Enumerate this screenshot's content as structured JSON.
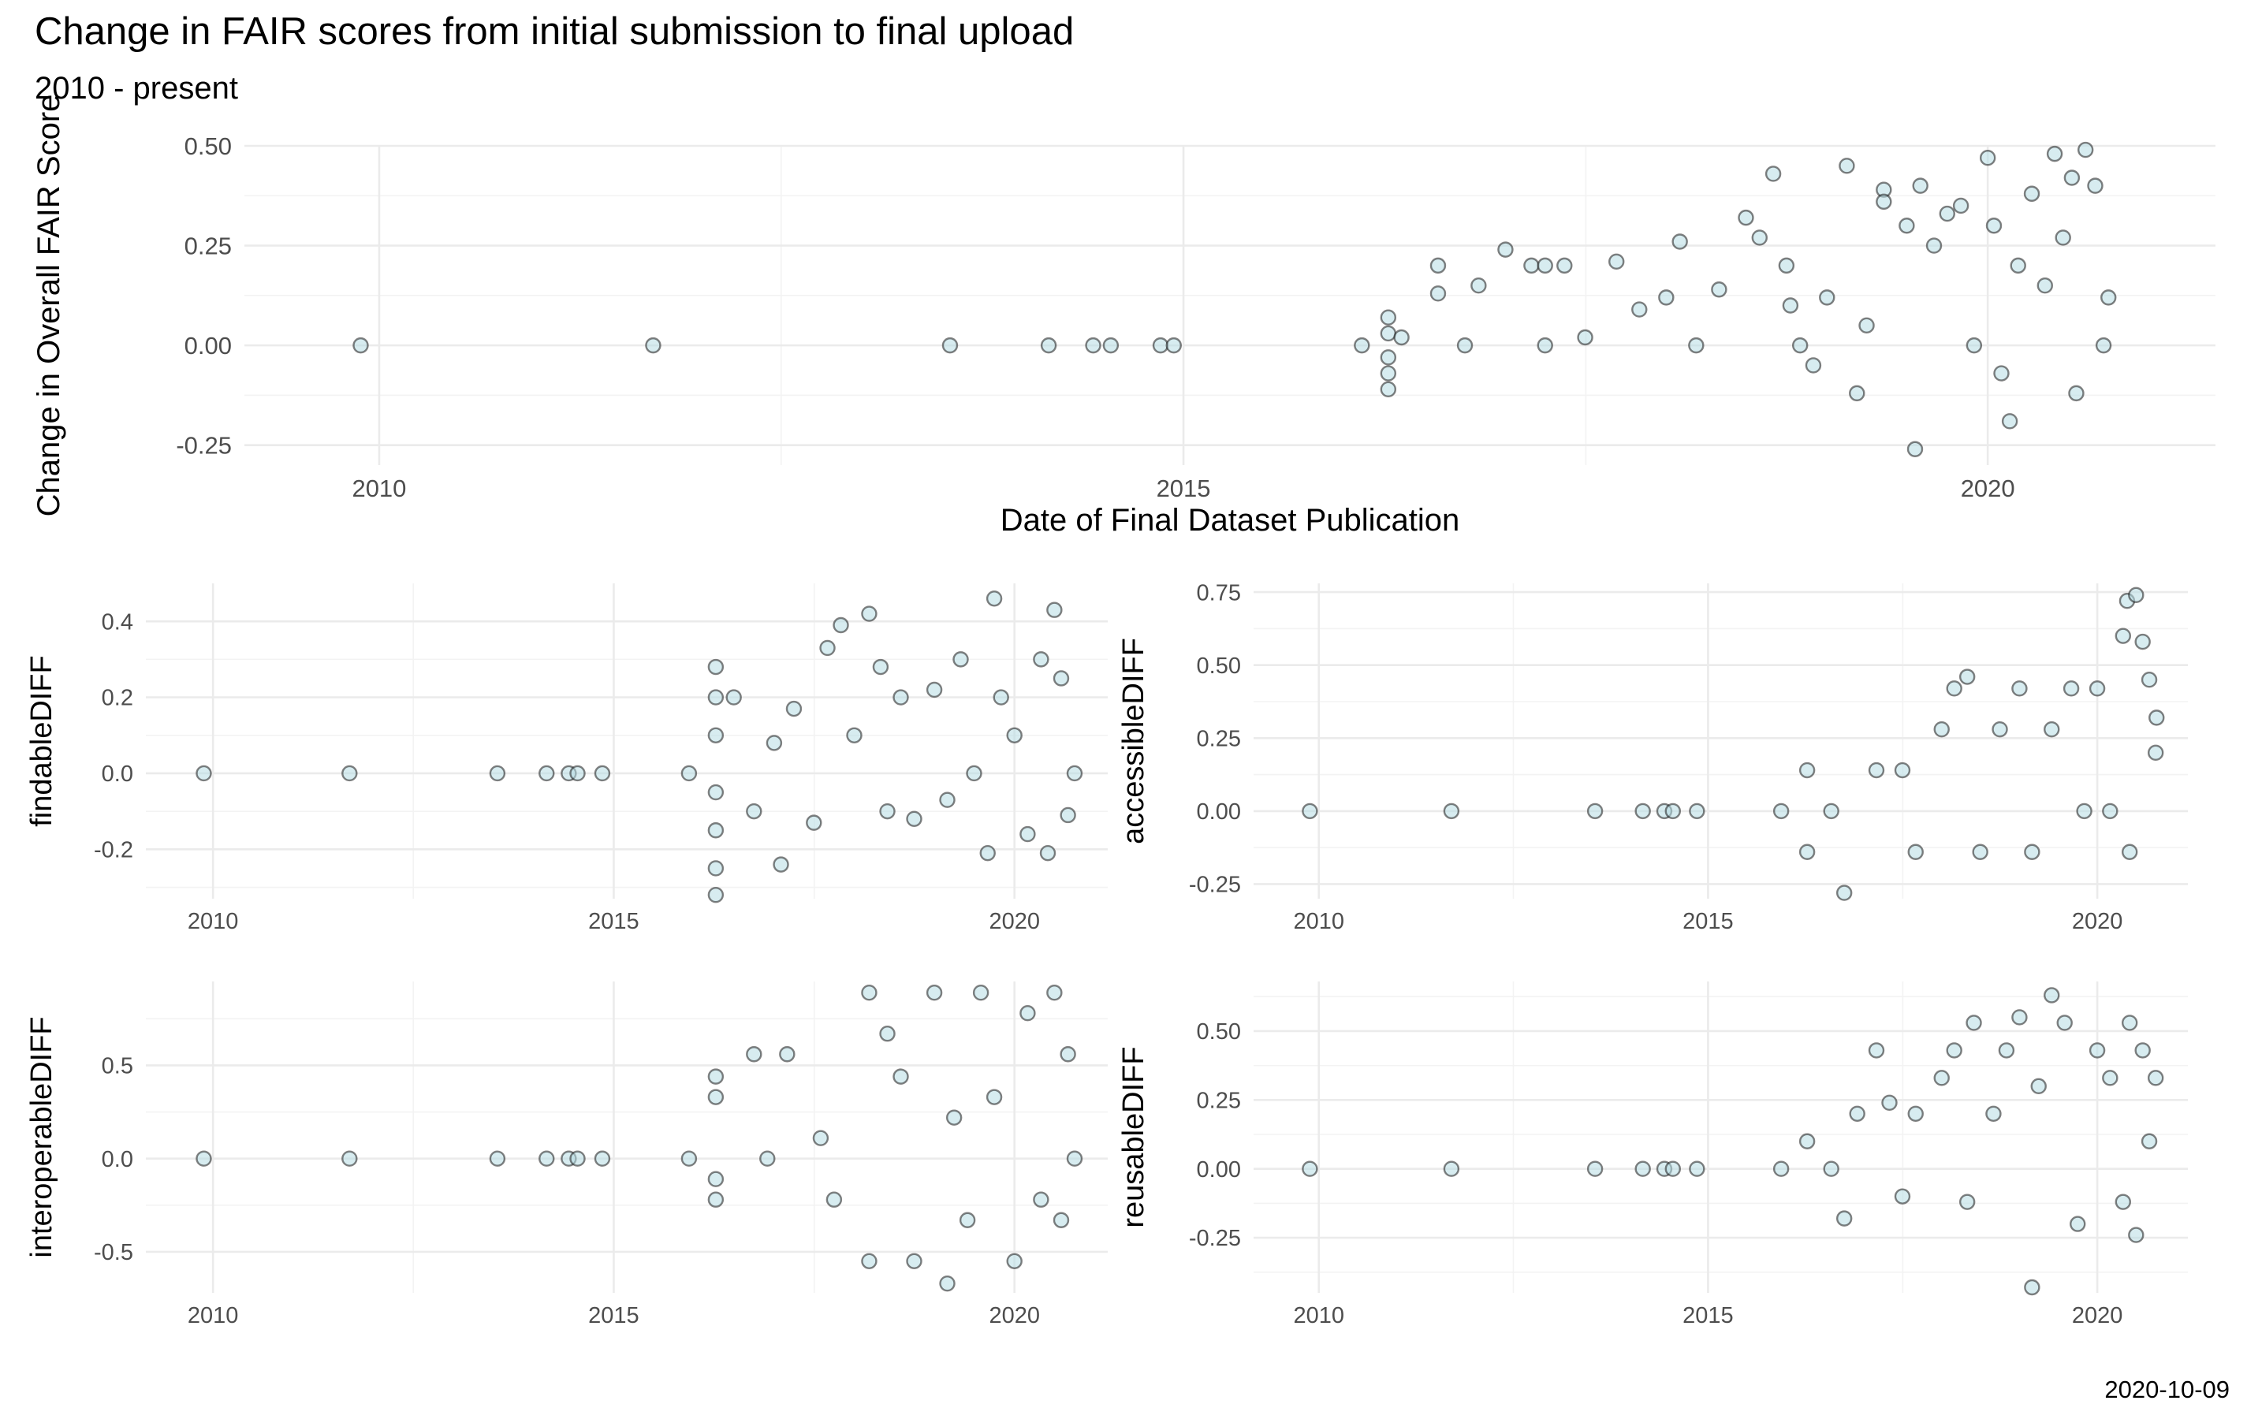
{
  "title": "Change in FAIR scores from initial submission to final upload",
  "subtitle": "2010 - present",
  "caption": "2020-10-09",
  "colors": {
    "point_fill": "#b7dde3",
    "point_stroke": "#1a1a1a",
    "grid": "#ebebeb"
  },
  "chart_data": [
    {
      "type": "scatter",
      "xlabel": "Date of Final Dataset Publication",
      "ylabel": "Change in Overall FAIR Score",
      "xlim": [
        "2009-03-01",
        "2021-06-01"
      ],
      "ylim": [
        -0.3,
        0.5
      ],
      "xticks": [
        "2010",
        "2015",
        "2020"
      ],
      "yticks": [
        "-0.25",
        "0.00",
        "0.25",
        "0.50"
      ],
      "grid": true,
      "points": [
        [
          "2009-11-20",
          0.0
        ],
        [
          "2011-09-15",
          0.0
        ],
        [
          "2013-07-20",
          0.0
        ],
        [
          "2014-03-01",
          0.0
        ],
        [
          "2014-06-10",
          0.0
        ],
        [
          "2014-07-20",
          0.0
        ],
        [
          "2014-11-10",
          0.0
        ],
        [
          "2014-12-10",
          0.0
        ],
        [
          "2016-02-10",
          0.0
        ],
        [
          "2016-04-10",
          0.07
        ],
        [
          "2016-04-10",
          0.03
        ],
        [
          "2016-04-10",
          -0.03
        ],
        [
          "2016-04-10",
          -0.07
        ],
        [
          "2016-04-10",
          -0.11
        ],
        [
          "2016-05-10",
          0.02
        ],
        [
          "2016-08-01",
          0.2
        ],
        [
          "2016-08-01",
          0.13
        ],
        [
          "2016-10-01",
          0.0
        ],
        [
          "2016-11-01",
          0.15
        ],
        [
          "2017-01-01",
          0.24
        ],
        [
          "2017-03-01",
          0.2
        ],
        [
          "2017-04-01",
          0.2
        ],
        [
          "2017-05-15",
          0.2
        ],
        [
          "2017-04-01",
          0.0
        ],
        [
          "2017-07-01",
          0.02
        ],
        [
          "2017-09-10",
          0.21
        ],
        [
          "2017-11-01",
          0.09
        ],
        [
          "2018-01-01",
          0.12
        ],
        [
          "2018-02-01",
          0.26
        ],
        [
          "2018-03-10",
          0.0
        ],
        [
          "2018-05-01",
          0.14
        ],
        [
          "2018-07-01",
          0.32
        ],
        [
          "2018-08-01",
          0.27
        ],
        [
          "2018-09-01",
          0.43
        ],
        [
          "2018-10-01",
          0.2
        ],
        [
          "2018-10-10",
          0.1
        ],
        [
          "2018-11-01",
          0.0
        ],
        [
          "2018-12-01",
          -0.05
        ],
        [
          "2019-01-01",
          0.12
        ],
        [
          "2019-02-15",
          0.45
        ],
        [
          "2019-03-10",
          -0.12
        ],
        [
          "2019-04-01",
          0.05
        ],
        [
          "2019-05-10",
          0.39
        ],
        [
          "2019-05-10",
          0.36
        ],
        [
          "2019-07-01",
          0.3
        ],
        [
          "2019-07-20",
          -0.26
        ],
        [
          "2019-08-01",
          0.4
        ],
        [
          "2019-09-01",
          0.25
        ],
        [
          "2019-10-01",
          0.33
        ],
        [
          "2019-11-01",
          0.35
        ],
        [
          "2019-12-01",
          0.0
        ],
        [
          "2020-01-01",
          0.47
        ],
        [
          "2020-01-15",
          0.3
        ],
        [
          "2020-02-01",
          -0.07
        ],
        [
          "2020-02-20",
          -0.19
        ],
        [
          "2020-03-10",
          0.2
        ],
        [
          "2020-04-10",
          0.38
        ],
        [
          "2020-05-10",
          0.15
        ],
        [
          "2020-06-01",
          0.48
        ],
        [
          "2020-06-20",
          0.27
        ],
        [
          "2020-07-10",
          0.42
        ],
        [
          "2020-07-20",
          -0.12
        ],
        [
          "2020-08-10",
          0.49
        ],
        [
          "2020-09-01",
          0.4
        ],
        [
          "2020-09-20",
          0.0
        ],
        [
          "2020-10-01",
          0.12
        ]
      ]
    },
    {
      "type": "scatter",
      "xlabel": "",
      "ylabel": "findableDIFF",
      "xlim": [
        "2009-03-01",
        "2021-03-01"
      ],
      "ylim": [
        -0.33,
        0.5
      ],
      "xticks": [
        "2010",
        "2015",
        "2020"
      ],
      "yticks": [
        "-0.2",
        "0.0",
        "0.2",
        "0.4"
      ],
      "grid": true,
      "points": [
        [
          "2009-11-20",
          0.0
        ],
        [
          "2011-09-15",
          0.0
        ],
        [
          "2013-07-20",
          0.0
        ],
        [
          "2014-03-01",
          0.0
        ],
        [
          "2014-06-10",
          0.0
        ],
        [
          "2014-07-20",
          0.0
        ],
        [
          "2014-11-10",
          0.0
        ],
        [
          "2015-12-10",
          0.0
        ],
        [
          "2016-04-10",
          0.28
        ],
        [
          "2016-04-10",
          0.2
        ],
        [
          "2016-04-10",
          0.1
        ],
        [
          "2016-04-10",
          -0.05
        ],
        [
          "2016-04-10",
          -0.15
        ],
        [
          "2016-04-10",
          -0.25
        ],
        [
          "2016-04-10",
          -0.32
        ],
        [
          "2016-07-01",
          0.2
        ],
        [
          "2016-10-01",
          -0.1
        ],
        [
          "2017-01-01",
          0.08
        ],
        [
          "2017-02-01",
          -0.24
        ],
        [
          "2017-04-01",
          0.17
        ],
        [
          "2017-07-01",
          -0.13
        ],
        [
          "2017-09-01",
          0.33
        ],
        [
          "2017-11-01",
          0.39
        ],
        [
          "2018-01-01",
          0.1
        ],
        [
          "2018-03-10",
          0.42
        ],
        [
          "2018-05-01",
          0.28
        ],
        [
          "2018-06-01",
          -0.1
        ],
        [
          "2018-08-01",
          0.2
        ],
        [
          "2018-10-01",
          -0.12
        ],
        [
          "2019-01-01",
          0.22
        ],
        [
          "2019-03-01",
          -0.07
        ],
        [
          "2019-05-01",
          0.3
        ],
        [
          "2019-07-01",
          0.0
        ],
        [
          "2019-09-01",
          -0.21
        ],
        [
          "2019-10-01",
          0.46
        ],
        [
          "2019-11-01",
          0.2
        ],
        [
          "2020-01-01",
          0.1
        ],
        [
          "2020-03-01",
          -0.16
        ],
        [
          "2020-05-01",
          0.3
        ],
        [
          "2020-06-01",
          -0.21
        ],
        [
          "2020-07-01",
          0.43
        ],
        [
          "2020-08-01",
          0.25
        ],
        [
          "2020-09-01",
          -0.11
        ],
        [
          "2020-10-01",
          0.0
        ]
      ]
    },
    {
      "type": "scatter",
      "xlabel": "",
      "ylabel": "accessibleDIFF",
      "xlim": [
        "2009-03-01",
        "2021-03-01"
      ],
      "ylim": [
        -0.3,
        0.78
      ],
      "xticks": [
        "2010",
        "2015",
        "2020"
      ],
      "yticks": [
        "-0.25",
        "0.00",
        "0.25",
        "0.50",
        "0.75"
      ],
      "grid": true,
      "points": [
        [
          "2009-11-20",
          0.0
        ],
        [
          "2011-09-15",
          0.0
        ],
        [
          "2013-07-20",
          0.0
        ],
        [
          "2014-03-01",
          0.0
        ],
        [
          "2014-06-10",
          0.0
        ],
        [
          "2014-07-20",
          0.0
        ],
        [
          "2014-11-10",
          0.0
        ],
        [
          "2015-12-10",
          0.0
        ],
        [
          "2016-04-10",
          0.14
        ],
        [
          "2016-04-10",
          -0.14
        ],
        [
          "2016-08-01",
          0.0
        ],
        [
          "2016-10-01",
          -0.28
        ],
        [
          "2017-03-01",
          0.14
        ],
        [
          "2017-07-01",
          0.14
        ],
        [
          "2017-09-01",
          -0.14
        ],
        [
          "2018-01-01",
          0.28
        ],
        [
          "2018-03-01",
          0.42
        ],
        [
          "2018-05-01",
          0.46
        ],
        [
          "2018-07-01",
          -0.14
        ],
        [
          "2018-10-01",
          0.28
        ],
        [
          "2019-01-01",
          0.42
        ],
        [
          "2019-03-01",
          -0.14
        ],
        [
          "2019-06-01",
          0.28
        ],
        [
          "2019-09-01",
          0.42
        ],
        [
          "2019-11-01",
          0.0
        ],
        [
          "2020-01-01",
          0.42
        ],
        [
          "2020-03-01",
          0.0
        ],
        [
          "2020-05-01",
          0.6
        ],
        [
          "2020-05-20",
          0.72
        ],
        [
          "2020-06-01",
          -0.14
        ],
        [
          "2020-07-01",
          0.74
        ],
        [
          "2020-08-01",
          0.58
        ],
        [
          "2020-09-01",
          0.45
        ],
        [
          "2020-10-01",
          0.2
        ],
        [
          "2020-10-05",
          0.32
        ]
      ]
    },
    {
      "type": "scatter",
      "xlabel": "",
      "ylabel": "interoperableDIFF",
      "xlim": [
        "2009-03-01",
        "2021-03-01"
      ],
      "ylim": [
        -0.72,
        0.95
      ],
      "xticks": [
        "2010",
        "2015",
        "2020"
      ],
      "yticks": [
        "-0.5",
        "0.0",
        "0.5"
      ],
      "grid": true,
      "points": [
        [
          "2009-11-20",
          0.0
        ],
        [
          "2011-09-15",
          0.0
        ],
        [
          "2013-07-20",
          0.0
        ],
        [
          "2014-03-01",
          0.0
        ],
        [
          "2014-06-10",
          0.0
        ],
        [
          "2014-07-20",
          0.0
        ],
        [
          "2014-11-10",
          0.0
        ],
        [
          "2015-12-10",
          0.0
        ],
        [
          "2016-04-10",
          0.44
        ],
        [
          "2016-04-10",
          0.33
        ],
        [
          "2016-04-10",
          -0.11
        ],
        [
          "2016-04-10",
          -0.22
        ],
        [
          "2016-10-01",
          0.56
        ],
        [
          "2016-12-01",
          0.0
        ],
        [
          "2017-03-01",
          0.56
        ],
        [
          "2017-08-01",
          0.11
        ],
        [
          "2017-10-01",
          -0.22
        ],
        [
          "2018-03-10",
          0.89
        ],
        [
          "2018-03-10",
          -0.55
        ],
        [
          "2018-06-01",
          0.67
        ],
        [
          "2018-08-01",
          0.44
        ],
        [
          "2018-10-01",
          -0.55
        ],
        [
          "2019-01-01",
          0.89
        ],
        [
          "2019-03-01",
          -0.67
        ],
        [
          "2019-04-01",
          0.22
        ],
        [
          "2019-06-01",
          -0.33
        ],
        [
          "2019-08-01",
          0.89
        ],
        [
          "2019-10-01",
          0.33
        ],
        [
          "2020-01-01",
          -0.55
        ],
        [
          "2020-03-01",
          0.78
        ],
        [
          "2020-05-01",
          -0.22
        ],
        [
          "2020-07-01",
          0.89
        ],
        [
          "2020-08-01",
          -0.33
        ],
        [
          "2020-09-01",
          0.56
        ],
        [
          "2020-10-01",
          0.0
        ]
      ]
    },
    {
      "type": "scatter",
      "xlabel": "",
      "ylabel": "reusableDIFF",
      "xlim": [
        "2009-03-01",
        "2021-03-01"
      ],
      "ylim": [
        -0.45,
        0.68
      ],
      "xticks": [
        "2010",
        "2015",
        "2020"
      ],
      "yticks": [
        "-0.25",
        "0.00",
        "0.25",
        "0.50"
      ],
      "grid": true,
      "points": [
        [
          "2009-11-20",
          0.0
        ],
        [
          "2011-09-15",
          0.0
        ],
        [
          "2013-07-20",
          0.0
        ],
        [
          "2014-03-01",
          0.0
        ],
        [
          "2014-06-10",
          0.0
        ],
        [
          "2014-07-20",
          0.0
        ],
        [
          "2014-11-10",
          0.0
        ],
        [
          "2015-12-10",
          0.0
        ],
        [
          "2016-04-10",
          0.1
        ],
        [
          "2016-08-01",
          0.0
        ],
        [
          "2016-10-01",
          -0.18
        ],
        [
          "2016-12-01",
          0.2
        ],
        [
          "2017-03-01",
          0.43
        ],
        [
          "2017-05-01",
          0.24
        ],
        [
          "2017-07-01",
          -0.1
        ],
        [
          "2017-09-01",
          0.2
        ],
        [
          "2018-01-01",
          0.33
        ],
        [
          "2018-03-01",
          0.43
        ],
        [
          "2018-05-01",
          -0.12
        ],
        [
          "2018-06-01",
          0.53
        ],
        [
          "2018-09-01",
          0.2
        ],
        [
          "2018-11-01",
          0.43
        ],
        [
          "2019-01-01",
          0.55
        ],
        [
          "2019-03-01",
          -0.43
        ],
        [
          "2019-04-01",
          0.3
        ],
        [
          "2019-06-01",
          0.63
        ],
        [
          "2019-08-01",
          0.53
        ],
        [
          "2019-10-01",
          -0.2
        ],
        [
          "2020-01-01",
          0.43
        ],
        [
          "2020-03-01",
          0.33
        ],
        [
          "2020-05-01",
          -0.12
        ],
        [
          "2020-06-01",
          0.53
        ],
        [
          "2020-07-01",
          -0.24
        ],
        [
          "2020-08-01",
          0.43
        ],
        [
          "2020-09-01",
          0.1
        ],
        [
          "2020-10-01",
          0.33
        ]
      ]
    }
  ]
}
